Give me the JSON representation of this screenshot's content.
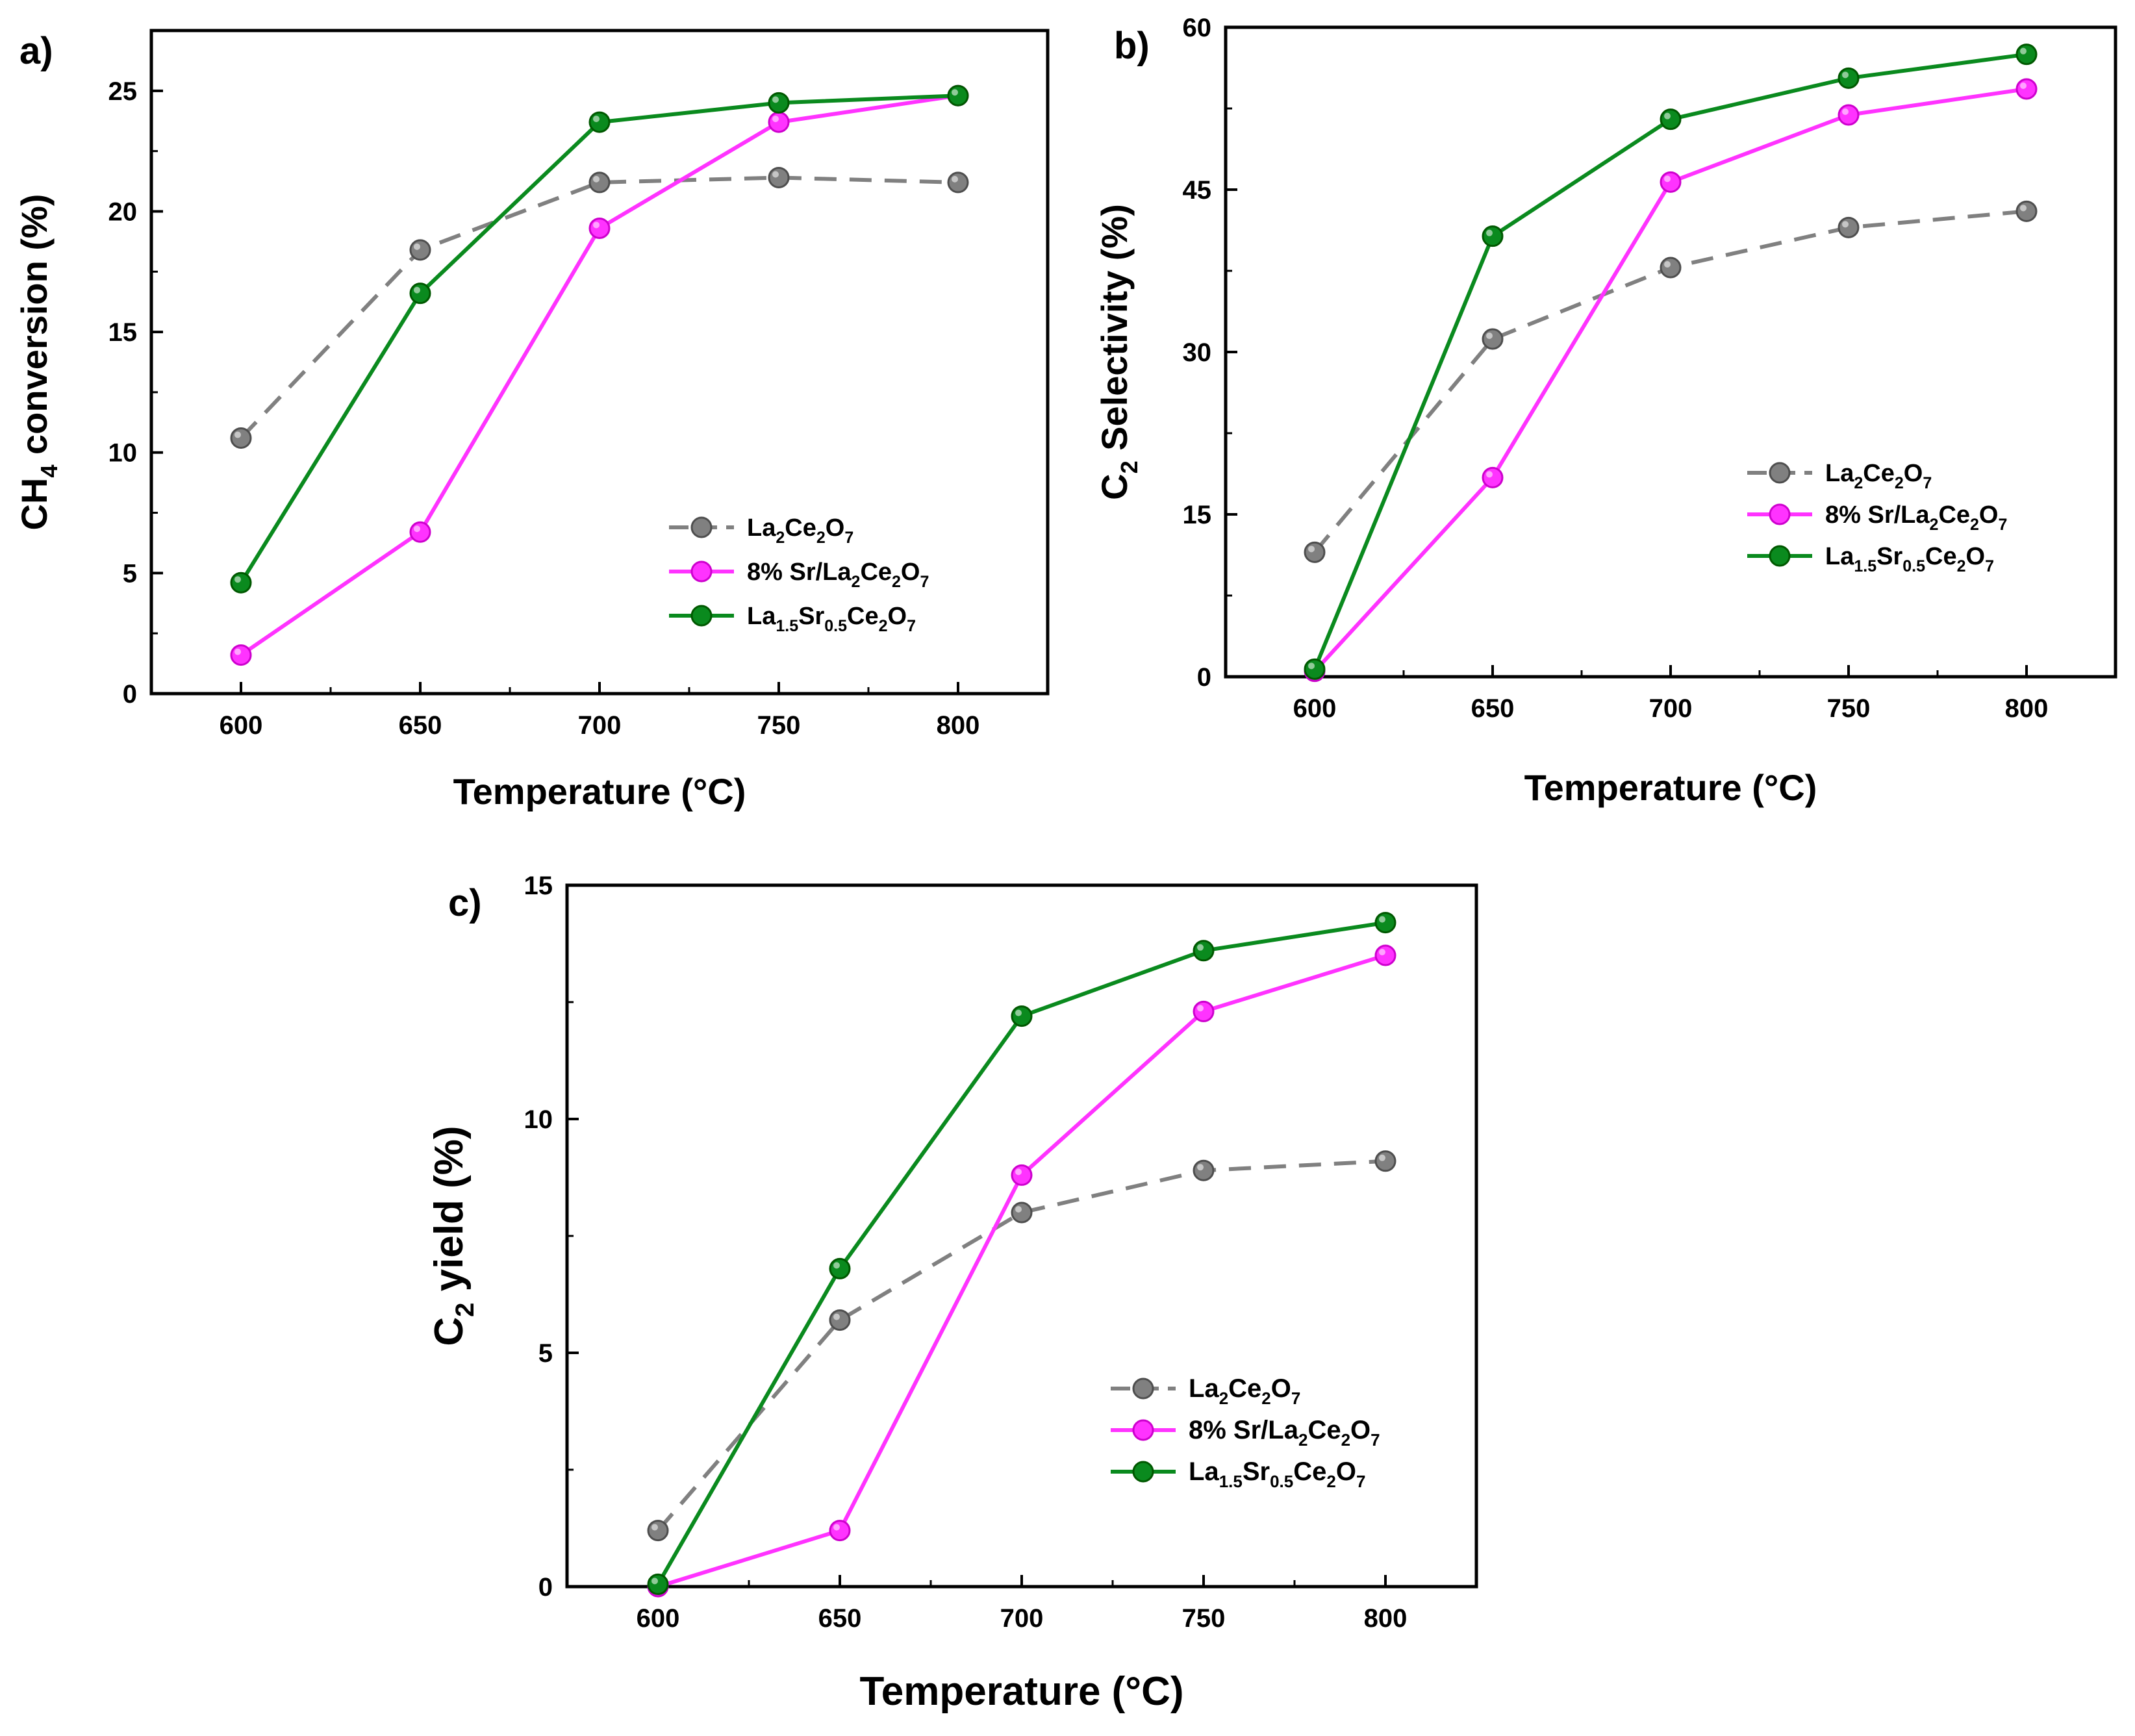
{
  "chart_data": [
    {
      "panel": "a)",
      "type": "line",
      "x": [
        600,
        650,
        700,
        750,
        800
      ],
      "xlabel": "Temperature (°C)",
      "ylabel": "CH4 conversion (%)",
      "xlim": [
        575,
        825
      ],
      "ylim": [
        0,
        27.5
      ],
      "xticks": [
        600,
        650,
        700,
        750,
        800
      ],
      "yticks": [
        0,
        5,
        10,
        15,
        20,
        25
      ],
      "legend_position": "lower-right",
      "series": [
        {
          "name": "La2Ce2O7",
          "values": [
            10.6,
            18.4,
            21.2,
            21.4,
            21.2
          ],
          "color": "#808080",
          "dashed": true
        },
        {
          "name": "8% Sr/La2Ce2O7",
          "values": [
            1.6,
            6.7,
            19.3,
            23.7,
            24.8
          ],
          "color": "#ff33ff",
          "dashed": false
        },
        {
          "name": "La1.5Sr0.5Ce2O7",
          "values": [
            4.6,
            16.6,
            23.7,
            24.5,
            24.8
          ],
          "color": "#0a8a1e",
          "dashed": false
        }
      ]
    },
    {
      "panel": "b)",
      "type": "line",
      "x": [
        600,
        650,
        700,
        750,
        800
      ],
      "xlabel": "Temperature (°C)",
      "ylabel": "C2 Selectivity (%)",
      "xlim": [
        575,
        825
      ],
      "ylim": [
        0,
        60
      ],
      "xticks": [
        600,
        650,
        700,
        750,
        800
      ],
      "yticks": [
        0,
        15,
        30,
        45,
        60
      ],
      "legend_position": "lower-right",
      "series": [
        {
          "name": "La2Ce2O7",
          "values": [
            11.5,
            31.2,
            37.8,
            41.5,
            43.0
          ],
          "color": "#808080",
          "dashed": true
        },
        {
          "name": "8% Sr/La2Ce2O7",
          "values": [
            0.5,
            18.4,
            45.7,
            51.9,
            54.3
          ],
          "color": "#ff33ff",
          "dashed": false
        },
        {
          "name": "La1.5Sr0.5Ce2O7",
          "values": [
            0.7,
            40.7,
            51.5,
            55.3,
            57.5
          ],
          "color": "#0a8a1e",
          "dashed": false
        }
      ]
    },
    {
      "panel": "c)",
      "type": "line",
      "x": [
        600,
        650,
        700,
        750,
        800
      ],
      "xlabel": "Temperature (°C)",
      "ylabel": "C2 yield (%)",
      "xlim": [
        575,
        825
      ],
      "ylim": [
        0,
        15
      ],
      "xticks": [
        600,
        650,
        700,
        750,
        800
      ],
      "yticks": [
        0,
        5,
        10,
        15
      ],
      "legend_position": "lower-right",
      "series": [
        {
          "name": "La2Ce2O7",
          "values": [
            1.2,
            5.7,
            8.0,
            8.9,
            9.1
          ],
          "color": "#808080",
          "dashed": true
        },
        {
          "name": "8% Sr/La2Ce2O7",
          "values": [
            0.0,
            1.2,
            8.8,
            12.3,
            13.5
          ],
          "color": "#ff33ff",
          "dashed": false
        },
        {
          "name": "La1.5Sr0.5Ce2O7",
          "values": [
            0.05,
            6.8,
            12.2,
            13.6,
            14.2
          ],
          "color": "#0a8a1e",
          "dashed": false
        }
      ]
    }
  ]
}
